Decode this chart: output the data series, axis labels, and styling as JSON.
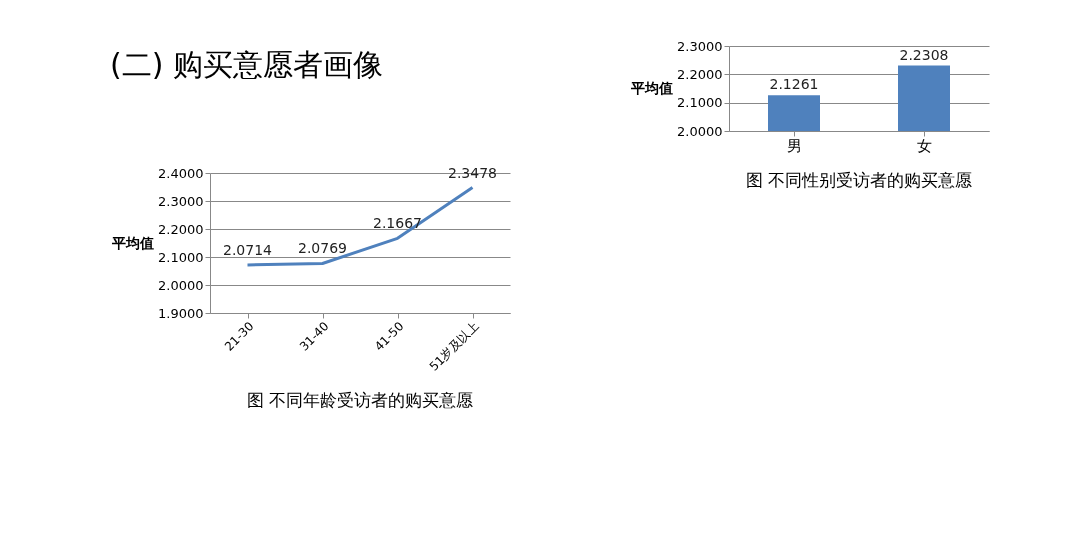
{
  "chart_data": [
    {
      "type": "line",
      "title": "图 不同年龄受访者的购买意愿",
      "annotations": [
        "(二) 购买意愿者画像"
      ],
      "ylabel": "平均值",
      "categories": [
        "21-30",
        "31-40",
        "41-50",
        "51岁及以上"
      ],
      "series": [
        {
          "color": "#4f81bd",
          "values": [
            2.0714,
            2.0769,
            2.1667,
            2.3478
          ]
        }
      ],
      "ylim": [
        1.9,
        2.4
      ],
      "yticks": [
        {
          "value": 1.9,
          "label": "1.9000"
        },
        {
          "value": 2.0,
          "label": "2.0000"
        },
        {
          "value": 2.1,
          "label": "2.1000"
        },
        {
          "value": 2.2,
          "label": "2.2000"
        },
        {
          "value": 2.3,
          "label": "2.3000"
        },
        {
          "value": 2.4,
          "label": "2.4000"
        }
      ],
      "value_labels": [
        "2.0714",
        "2.0769",
        "2.1667",
        "2.3478"
      ],
      "grid": "y",
      "legend": false,
      "marker": "none",
      "line_style": "solid"
    },
    {
      "type": "bar",
      "title": "图 不同性别受访者的购买意愿",
      "ylabel": "平均值",
      "categories": [
        "男",
        "女"
      ],
      "series": [
        {
          "color": "#4f81bd",
          "values": [
            2.1261,
            2.2308
          ]
        }
      ],
      "ylim": [
        2.0,
        2.3
      ],
      "yticks": [
        {
          "value": 2.0,
          "label": "2.0000"
        },
        {
          "value": 2.1,
          "label": "2.1000"
        },
        {
          "value": 2.2,
          "label": "2.2000"
        },
        {
          "value": 2.3,
          "label": "2.3000"
        }
      ],
      "value_labels": [
        "2.1261",
        "2.2308"
      ],
      "grid": "y",
      "legend": false
    }
  ]
}
